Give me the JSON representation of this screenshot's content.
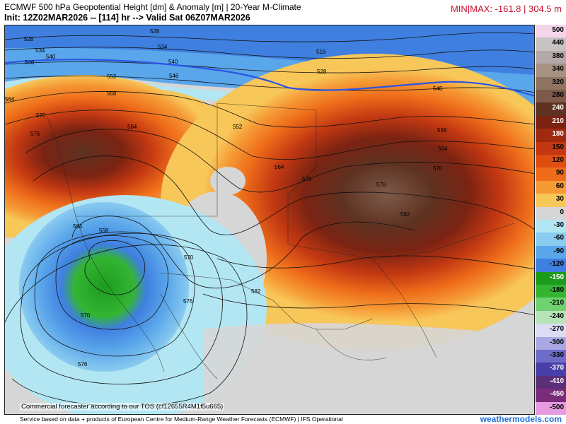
{
  "header": {
    "title": "ECMWF 500 hPa Geopotential Height [dm] & Anomaly [m] | 20-Year M-Climate",
    "init_line": "Init: 12Z02MAR2026 -- [114] hr --> Valid Sat 06Z07MAR2026",
    "minmax": "MIN|MAX: -161.8 | 304.5 m"
  },
  "colors": {
    "brand": "#1f6fd6",
    "minmax": "#c8102e",
    "thickness_line": "#2a55e6"
  },
  "contour_labels": [
    "528",
    "534",
    "540",
    "546",
    "552",
    "558",
    "564",
    "570",
    "576",
    "582",
    "516"
  ],
  "scale": {
    "labels": [
      "500",
      "440",
      "380",
      "340",
      "320",
      "280",
      "240",
      "210",
      "180",
      "150",
      "120",
      "90",
      "60",
      "30",
      "0",
      "-30",
      "-60",
      "-90",
      "-120",
      "-150",
      "-180",
      "-210",
      "-240",
      "-270",
      "-300",
      "-330",
      "-370",
      "-410",
      "-450",
      "-500"
    ],
    "colors": [
      "#f5d5ea",
      "#c8c3c3",
      "#b5a8a8",
      "#a79183",
      "#8f7561",
      "#7d5a49",
      "#5e3221",
      "#7b2312",
      "#9e2a10",
      "#c33812",
      "#e04d12",
      "#ef6d1a",
      "#f59a35",
      "#f8c75a",
      "#d6d6d6",
      "#b3e6f3",
      "#8acbf0",
      "#5aa6ea",
      "#3f7fe0",
      "#1d9b1d",
      "#33b533",
      "#6fd16f",
      "#b7e4b7",
      "#dcdcf5",
      "#a9a8e2",
      "#6d6dc9",
      "#4a3fa8",
      "#5a2e78",
      "#7a2c7a",
      "#e69be0"
    ]
  },
  "footer": {
    "tos": "Commercial forecaster according to our TOS (cf12655R4M1f5u665)",
    "service": "Service based on data + products of European Centre for Medium-Range Weather Forecasts (ECMWF) | IFS Operational",
    "brand": "weathermodels.com"
  }
}
